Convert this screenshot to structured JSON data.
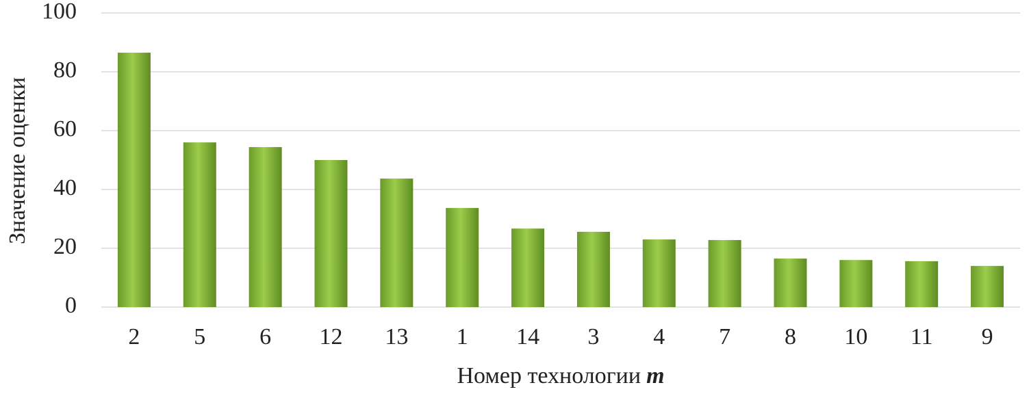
{
  "chart_data": {
    "type": "bar",
    "xlabel": {
      "text": "Номер технологии",
      "variable": "m"
    },
    "ylabel": "Значение оценки",
    "categories": [
      "2",
      "5",
      "6",
      "12",
      "13",
      "1",
      "14",
      "3",
      "4",
      "7",
      "8",
      "10",
      "11",
      "9"
    ],
    "values": [
      86.5,
      56.0,
      54.4,
      50.0,
      43.7,
      33.7,
      26.7,
      25.6,
      23.0,
      22.8,
      16.5,
      16.0,
      15.6,
      14.0
    ],
    "color": "#9ccc4a",
    "ylim": [
      0,
      100
    ],
    "yticks": [
      0,
      20,
      40,
      60,
      80,
      100
    ],
    "grid": true
  }
}
